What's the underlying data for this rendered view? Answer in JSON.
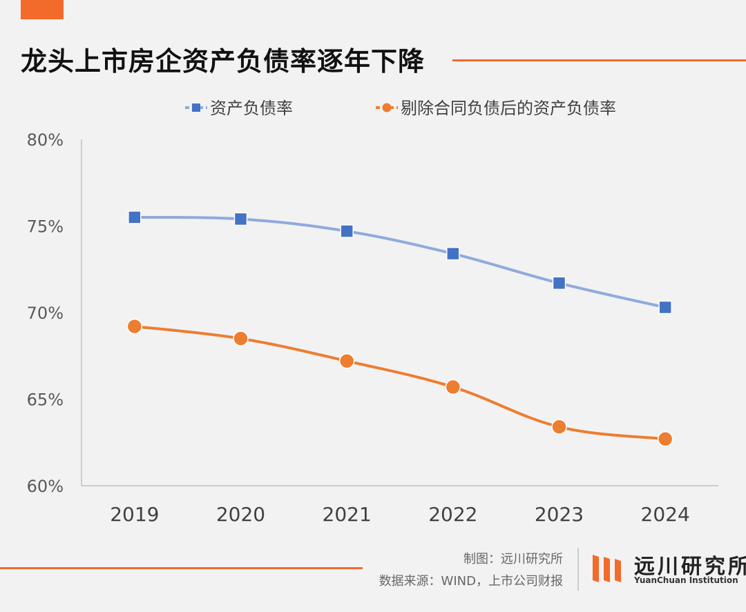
{
  "header": {
    "title": "龙头上市房企资产负债率逐年下降"
  },
  "chart_data": {
    "type": "line",
    "categories": [
      "2019",
      "2020",
      "2021",
      "2022",
      "2023",
      "2024"
    ],
    "series": [
      {
        "name": "资产负债率",
        "values": [
          75.5,
          75.4,
          74.7,
          73.4,
          71.7,
          70.3
        ],
        "color": "#8faadc",
        "marker_color": "#4472c4",
        "marker": "square"
      },
      {
        "name": "剔除合同负债后的资产负债率",
        "values": [
          69.2,
          68.5,
          67.2,
          65.7,
          63.4,
          62.7
        ],
        "color": "#ed7d31",
        "marker_color": "#ed7d31",
        "marker": "circle"
      }
    ],
    "ylim": [
      60,
      80
    ],
    "yticks": [
      80,
      75,
      70,
      65,
      60
    ],
    "ytick_labels": [
      "80%",
      "75%",
      "70%",
      "65%",
      "60%"
    ],
    "legend_position": "top",
    "grid": false
  },
  "footer": {
    "credit": "制图：远川研究所",
    "source": "数据来源：WIND，上市公司财报"
  },
  "logo": {
    "name_cn": "远川研究所",
    "name_en": "YuanChuan Institution",
    "color": "#f26b2a"
  }
}
